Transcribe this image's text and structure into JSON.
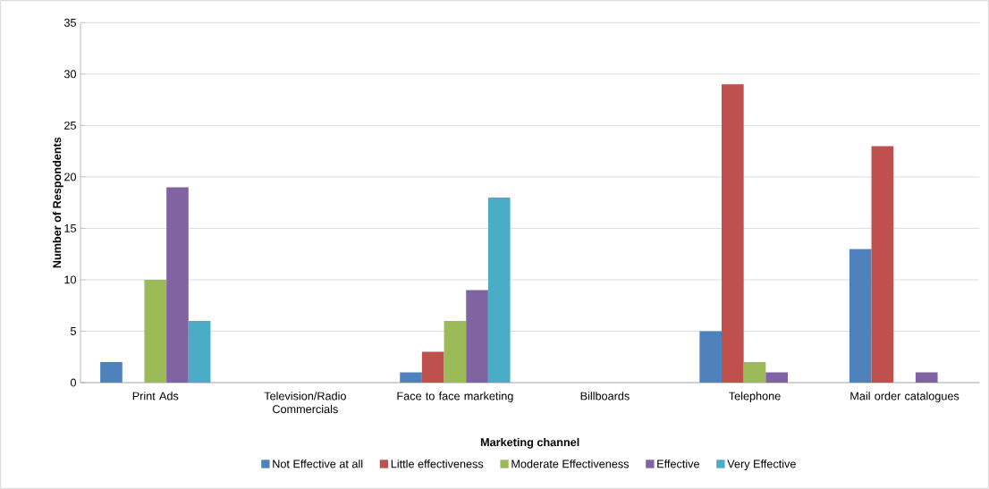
{
  "chart_data": {
    "type": "bar",
    "xlabel": "Marketing channel",
    "ylabel": "Number of Respondents",
    "categories": [
      "Print Ads",
      "Television/Radio Commercials",
      "Face to face marketing",
      "Billboards",
      "Telephone",
      "Mail order catalogues"
    ],
    "series": [
      {
        "name": "Not Effective at all",
        "color": "#4f81bd",
        "values": [
          2,
          0,
          1,
          0,
          5,
          13
        ]
      },
      {
        "name": "Little effectiveness",
        "color": "#c0504d",
        "values": [
          0,
          0,
          3,
          0,
          29,
          23
        ]
      },
      {
        "name": "Moderate Effectiveness",
        "color": "#9bbb59",
        "values": [
          10,
          0,
          6,
          0,
          2,
          0
        ]
      },
      {
        "name": "Effective",
        "color": "#8064a2",
        "values": [
          19,
          0,
          9,
          0,
          1,
          1
        ]
      },
      {
        "name": "Very Effective",
        "color": "#4bacc6",
        "values": [
          6,
          0,
          18,
          0,
          0,
          0
        ]
      }
    ],
    "ylim": [
      0,
      35
    ],
    "yticks": [
      0,
      5,
      10,
      15,
      20,
      25,
      30,
      35
    ],
    "grid": "y",
    "legend": "bottom"
  }
}
